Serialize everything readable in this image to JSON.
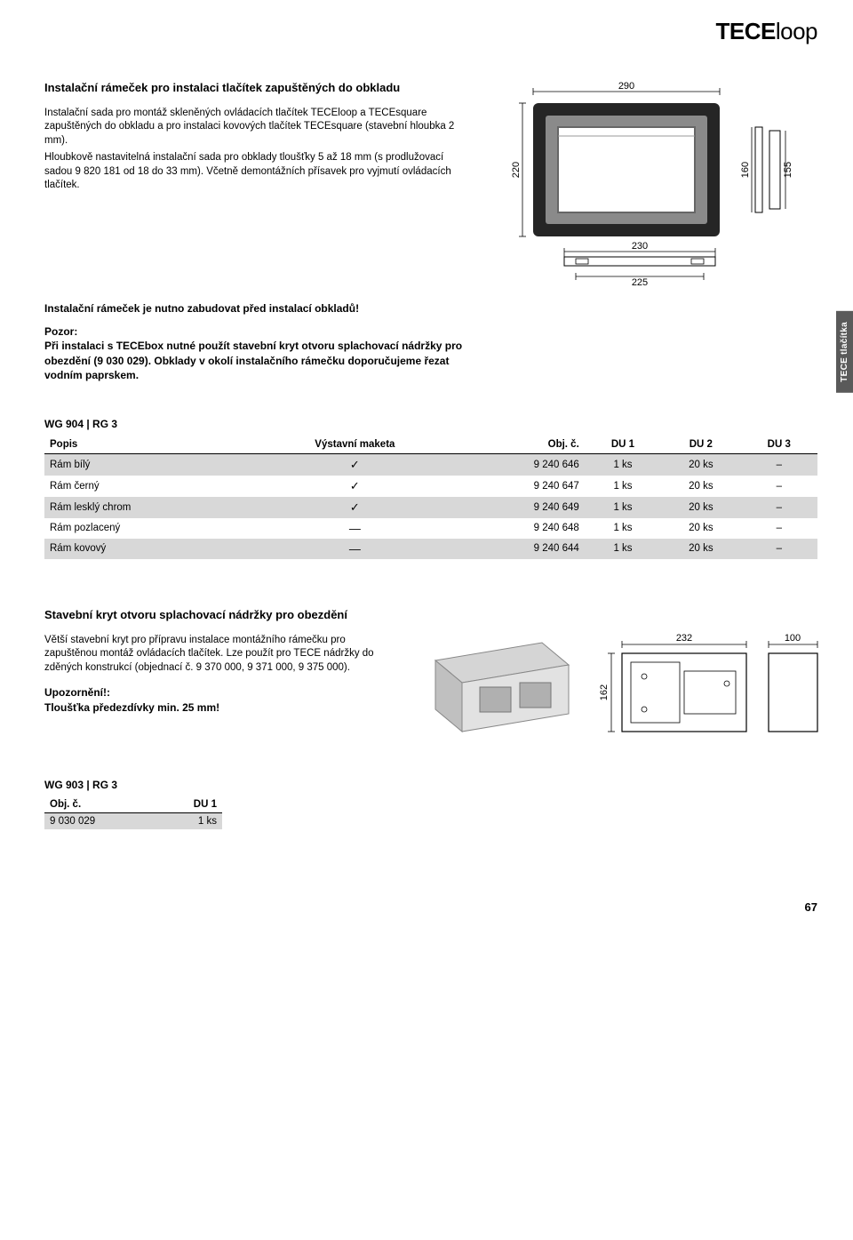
{
  "brand_bold": "TECE",
  "brand_light": "loop",
  "sidetab": "TECE tlačítka",
  "section1": {
    "title": "Instalační rámeček pro instalaci tlačítek zapuštěných do obkladu",
    "p1": "Instalační sada pro montáž skleněných ovládacích tlačítek TECEloop a TECEsquare zapuštěných do obkladu a pro instalaci kovových tlačítek TECEsquare (stavební hloubka 2 mm).",
    "p2": "Hloubkově nastavitelná instalační sada pro obklady tloušťky 5 až 18 mm (s prodlužovací sadou 9 820 181 od 18 do 33 mm). Včetně demontážních přísavek pro vyjmutí ovládacích tlačítek.",
    "bold1": "Instalační rámeček je nutno zabudovat před instalací obkladů!",
    "pozor_label": "Pozor:",
    "pozor_text": "Při instalaci s TECEbox nutné použít stavební kryt otvoru splachovací nádržky pro obezdění (9 030 029). Obklady v okolí instalačního rámečku doporučujeme řezat vodním paprskem.",
    "dims": {
      "w": "290",
      "h": "220",
      "d1": "160",
      "d2": "155",
      "t_w": "230",
      "t_h": "225"
    }
  },
  "wg1": "WG 904 | RG 3",
  "table1": {
    "headers": [
      "Popis",
      "Výstavní maketa",
      "Obj. č.",
      "DU 1",
      "DU 2",
      "DU 3"
    ],
    "rows": [
      {
        "c": [
          "Rám bílý",
          "✓",
          "9 240 646",
          "1 ks",
          "20 ks",
          "–"
        ],
        "shade": true
      },
      {
        "c": [
          "Rám černý",
          "✓",
          "9 240 647",
          "1 ks",
          "20 ks",
          "–"
        ],
        "shade": false
      },
      {
        "c": [
          "Rám lesklý chrom",
          "✓",
          "9 240 649",
          "1 ks",
          "20 ks",
          "–"
        ],
        "shade": true
      },
      {
        "c": [
          "Rám pozlacený",
          "—",
          "9 240 648",
          "1 ks",
          "20 ks",
          "–"
        ],
        "shade": false
      },
      {
        "c": [
          "Rám kovový",
          "—",
          "9 240 644",
          "1 ks",
          "20 ks",
          "–"
        ],
        "shade": true
      }
    ]
  },
  "section2": {
    "title": "Stavební kryt otvoru splachovací nádržky pro obezdění",
    "p1": "Větší stavební kryt pro přípravu instalace montážního rámečku pro zapuštěnou montáž ovládacích tlačítek. Lze použít pro TECE nádržky do zděných konstrukcí (objednací č. 9 370 000, 9 371 000, 9 375 000).",
    "warn_label": "Upozornění!:",
    "warn_text": "Tloušťka předezdívky min. 25 mm!",
    "dims": {
      "w": "232",
      "h": "162",
      "d": "100"
    }
  },
  "wg2": "WG 903 | RG 3",
  "table2": {
    "headers": [
      "Obj. č.",
      "DU 1"
    ],
    "rows": [
      {
        "c": [
          "9 030 029",
          "1 ks"
        ],
        "shade": true
      }
    ]
  },
  "pagenum": "67"
}
